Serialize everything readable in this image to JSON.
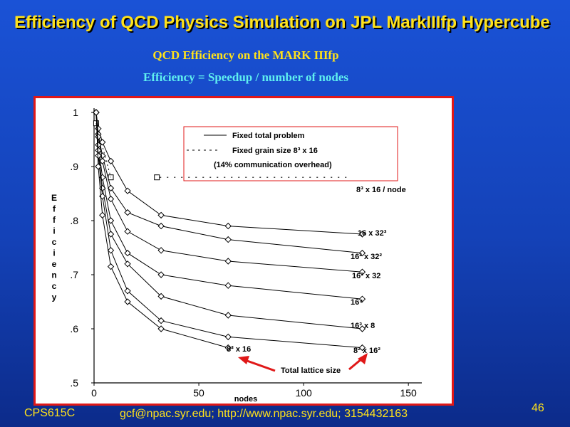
{
  "slide": {
    "title": "Efficiency of QCD Physics Simulation on JPL MarkIIIfp Hypercube",
    "subtitle_1": "QCD Efficiency on the MARK IIIfp",
    "subtitle_2": "Efficiency = Speedup / number of nodes",
    "footer_course": "CPS615C",
    "footer_contact": "gcf@npac.syr.edu; http://www.npac.syr.edu; 3154432163",
    "page_number": "46"
  },
  "colors": {
    "background": "#1448c8",
    "title": "#ffe21a",
    "subtitle_2": "#5ff0f0",
    "frame": "#e01818",
    "arrow": "#e01818"
  },
  "chart_data": {
    "type": "line",
    "xlabel": "nodes",
    "ylabel": "Efficiency",
    "xlim": [
      0,
      170
    ],
    "ylim": [
      0.5,
      1.0
    ],
    "x_ticks": [
      "0",
      "50",
      "100",
      "150"
    ],
    "y_ticks": [
      "1",
      ".9",
      ".8",
      ".7",
      ".6",
      ".5"
    ],
    "legend": {
      "solid": "Fixed total problem",
      "dashed": "Fixed grain size 8³ x 16",
      "note": "(14% communication overhead)"
    },
    "series": [
      {
        "name": "8³ x 16 / node",
        "style": "dashed",
        "x": [
          1,
          8,
          30
        ],
        "y": [
          0.98,
          0.88,
          0.88
        ]
      },
      {
        "name": "16 x 32³",
        "style": "solid",
        "x": [
          1,
          2,
          4,
          8,
          16,
          32,
          64,
          128
        ],
        "y": [
          1.0,
          0.97,
          0.945,
          0.91,
          0.855,
          0.81,
          0.79,
          0.775
        ]
      },
      {
        "name": "16² x 32²",
        "style": "solid",
        "x": [
          1,
          2,
          4,
          8,
          16,
          32,
          64,
          128
        ],
        "y": [
          1.0,
          0.96,
          0.92,
          0.86,
          0.815,
          0.79,
          0.765,
          0.74
        ]
      },
      {
        "name": "16³ x 32",
        "style": "solid",
        "x": [
          1,
          2,
          4,
          8,
          16,
          32,
          64,
          128
        ],
        "y": [
          1.0,
          0.955,
          0.91,
          0.84,
          0.78,
          0.745,
          0.725,
          0.705
        ]
      },
      {
        "name": "16⁴",
        "style": "solid",
        "x": [
          1,
          2,
          4,
          8,
          16,
          32,
          64,
          128
        ],
        "y": [
          1.0,
          0.94,
          0.88,
          0.8,
          0.74,
          0.7,
          0.68,
          0.655
        ]
      },
      {
        "name": "16³ x 8",
        "style": "solid",
        "x": [
          1,
          2,
          4,
          8,
          16,
          32,
          64,
          128
        ],
        "y": [
          1.0,
          0.93,
          0.86,
          0.775,
          0.72,
          0.66,
          0.625,
          0.6
        ]
      },
      {
        "name": "8² x 16²",
        "style": "solid",
        "x": [
          1,
          2,
          4,
          8,
          16,
          32,
          64,
          128
        ],
        "y": [
          1.0,
          0.92,
          0.845,
          0.745,
          0.67,
          0.615,
          0.585,
          0.565
        ]
      },
      {
        "name": "8³ x 16",
        "style": "solid",
        "x": [
          1,
          2,
          4,
          8,
          16,
          32,
          64
        ],
        "y": [
          1.0,
          0.9,
          0.81,
          0.715,
          0.65,
          0.6,
          0.565
        ]
      }
    ],
    "annotation": "Total lattice size"
  }
}
